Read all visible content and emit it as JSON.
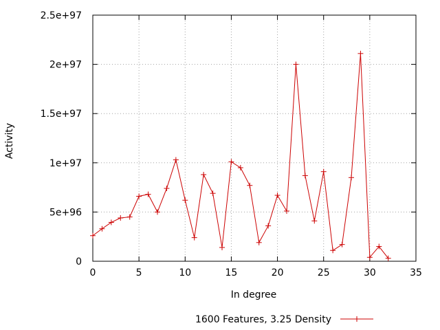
{
  "chart_data": {
    "type": "line",
    "xlabel": "In degree",
    "ylabel": "Activity",
    "xlim": [
      0,
      35
    ],
    "ylim": [
      0,
      2.5e+97
    ],
    "x_ticks": [
      0,
      5,
      10,
      15,
      20,
      25,
      30,
      35
    ],
    "x_tick_labels": [
      "0",
      "5",
      "10",
      "15",
      "20",
      "25",
      "30",
      "35"
    ],
    "y_ticks": [
      0,
      5e+96,
      1e+97,
      1.5e+97,
      2e+97,
      2.5e+97
    ],
    "y_tick_labels": [
      "0",
      "5e+96",
      "1e+97",
      "1.5e+97",
      "2e+97",
      "2.5e+97"
    ],
    "grid": true,
    "legend_position": "bottom-center",
    "series": [
      {
        "name": "1600 Features, 3.25 Density",
        "color": "#cc0000",
        "marker": "plus",
        "x": [
          0,
          1,
          2,
          3,
          4,
          5,
          6,
          7,
          8,
          9,
          10,
          11,
          12,
          13,
          14,
          15,
          16,
          17,
          18,
          19,
          20,
          21,
          22,
          23,
          24,
          25,
          26,
          27,
          28,
          29,
          30,
          31,
          32
        ],
        "y": [
          2.6e+96,
          3.3e+96,
          3.95e+96,
          4.4e+96,
          4.5e+96,
          6.6e+96,
          6.8e+96,
          5e+96,
          7.4e+96,
          1.03e+97,
          6.2e+96,
          2.4e+96,
          8.8e+96,
          6.9e+96,
          1.4e+96,
          1.01e+97,
          9.5e+96,
          7.7e+96,
          1.9e+96,
          3.6e+96,
          6.7e+96,
          5.1e+96,
          2e+97,
          8.7e+96,
          4.1e+96,
          9.1e+96,
          1.1e+96,
          1.7e+96,
          8.5e+96,
          2.11e+97,
          4e+95,
          1.5e+96,
          3e+95
        ]
      }
    ]
  }
}
